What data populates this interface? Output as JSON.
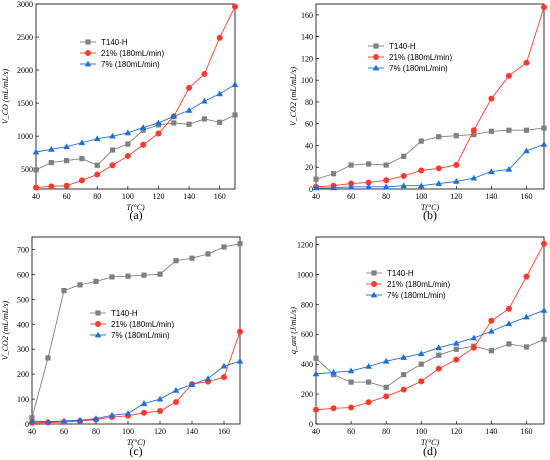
{
  "colors": {
    "T140-H": "#808080",
    "21% (180mL/min)": "#ff3b30",
    "7% (180mL/min)": "#1f6fd6"
  },
  "chart_data": [
    {
      "type": "line",
      "panel_label": "(a)",
      "xlabel": "T(°C)",
      "ylabel": "V_CO (mL/mL/s)",
      "xlim": [
        40,
        170
      ],
      "ylim": [
        200,
        3000
      ],
      "xticks": [
        40,
        60,
        80,
        100,
        120,
        140,
        160
      ],
      "yticks": [
        500,
        1000,
        1500,
        2000,
        2500,
        3000
      ],
      "legend_position": "top-left",
      "x": [
        40,
        50,
        60,
        70,
        80,
        90,
        100,
        110,
        120,
        130,
        140,
        150,
        160,
        170
      ],
      "series": [
        {
          "name": "T140-H",
          "marker": "square",
          "values": [
            490,
            600,
            630,
            660,
            560,
            790,
            880,
            1090,
            1170,
            1200,
            1180,
            1260,
            1210,
            1320
          ]
        },
        {
          "name": "21% (180mL/min)",
          "marker": "circle",
          "values": [
            220,
            240,
            250,
            330,
            420,
            560,
            700,
            870,
            1040,
            1300,
            1730,
            1940,
            2490,
            2960
          ]
        },
        {
          "name": "7% (180mL/min)",
          "marker": "triangle",
          "values": [
            760,
            800,
            840,
            900,
            960,
            1000,
            1050,
            1130,
            1200,
            1300,
            1390,
            1530,
            1640,
            1780
          ]
        }
      ]
    },
    {
      "type": "line",
      "panel_label": "(b)",
      "xlabel": "T(°C)",
      "ylabel": "V_CO2 (mL/mL/s)",
      "xlim": [
        40,
        170
      ],
      "ylim": [
        0,
        170
      ],
      "xticks": [
        40,
        60,
        80,
        100,
        120,
        140,
        160
      ],
      "yticks": [
        0,
        20,
        40,
        60,
        80,
        100,
        120,
        140,
        160
      ],
      "legend_position": "top-left",
      "x": [
        40,
        50,
        60,
        70,
        80,
        90,
        100,
        110,
        120,
        130,
        140,
        150,
        160,
        170
      ],
      "series": [
        {
          "name": "T140-H",
          "marker": "square",
          "values": [
            9,
            14,
            22,
            23,
            22,
            30,
            44,
            48,
            49,
            50,
            53,
            54,
            54,
            56
          ]
        },
        {
          "name": "21% (180mL/min)",
          "marker": "circle",
          "values": [
            2,
            3,
            5,
            6,
            8,
            12,
            17,
            19,
            22,
            54,
            83,
            104,
            116,
            167
          ]
        },
        {
          "name": "7% (180mL/min)",
          "marker": "triangle",
          "values": [
            1,
            1,
            2,
            2,
            2,
            3,
            3,
            5,
            7,
            10,
            16,
            18,
            35,
            41
          ]
        }
      ]
    },
    {
      "type": "line",
      "panel_label": "(c)",
      "xlabel": "T(°C)",
      "ylabel": "V_CO2 (mL/mL/s)",
      "xlim": [
        40,
        170
      ],
      "ylim": [
        0,
        750
      ],
      "xticks": [
        40,
        60,
        80,
        100,
        120,
        140,
        160
      ],
      "yticks": [
        0,
        100,
        200,
        300,
        400,
        500,
        600,
        700
      ],
      "legend_position": "center-right",
      "x": [
        40,
        50,
        60,
        70,
        80,
        90,
        100,
        110,
        120,
        130,
        140,
        150,
        160,
        170
      ],
      "series": [
        {
          "name": "T140-H",
          "marker": "square",
          "values": [
            25,
            265,
            535,
            558,
            572,
            590,
            593,
            597,
            601,
            655,
            665,
            682,
            710,
            723
          ]
        },
        {
          "name": "21% (180mL/min)",
          "marker": "circle",
          "values": [
            5,
            6,
            8,
            12,
            18,
            28,
            33,
            45,
            52,
            88,
            160,
            170,
            188,
            370
          ]
        },
        {
          "name": "7% (180mL/min)",
          "marker": "triangle",
          "values": [
            12,
            9,
            12,
            15,
            22,
            35,
            42,
            82,
            100,
            135,
            158,
            182,
            232,
            252
          ]
        }
      ]
    },
    {
      "type": "line",
      "panel_label": "(d)",
      "xlabel": "T(°C)",
      "ylabel": "q_ant (J/mL/s)",
      "xlim": [
        40,
        170
      ],
      "ylim": [
        0,
        1250
      ],
      "xticks": [
        40,
        60,
        80,
        100,
        120,
        140,
        160
      ],
      "yticks": [
        0,
        200,
        400,
        600,
        800,
        1000,
        1200
      ],
      "legend_position": "top-left",
      "x": [
        40,
        50,
        60,
        70,
        80,
        90,
        100,
        110,
        120,
        130,
        140,
        150,
        160,
        170
      ],
      "series": [
        {
          "name": "T140-H",
          "marker": "square",
          "values": [
            440,
            330,
            280,
            280,
            245,
            330,
            400,
            460,
            500,
            520,
            490,
            535,
            515,
            565
          ]
        },
        {
          "name": "21% (180mL/min)",
          "marker": "circle",
          "values": [
            95,
            105,
            110,
            145,
            185,
            230,
            285,
            370,
            430,
            510,
            690,
            770,
            985,
            1205
          ]
        },
        {
          "name": "7% (180mL/min)",
          "marker": "triangle",
          "values": [
            335,
            345,
            355,
            385,
            420,
            445,
            470,
            510,
            540,
            575,
            620,
            670,
            715,
            760
          ]
        }
      ]
    }
  ]
}
